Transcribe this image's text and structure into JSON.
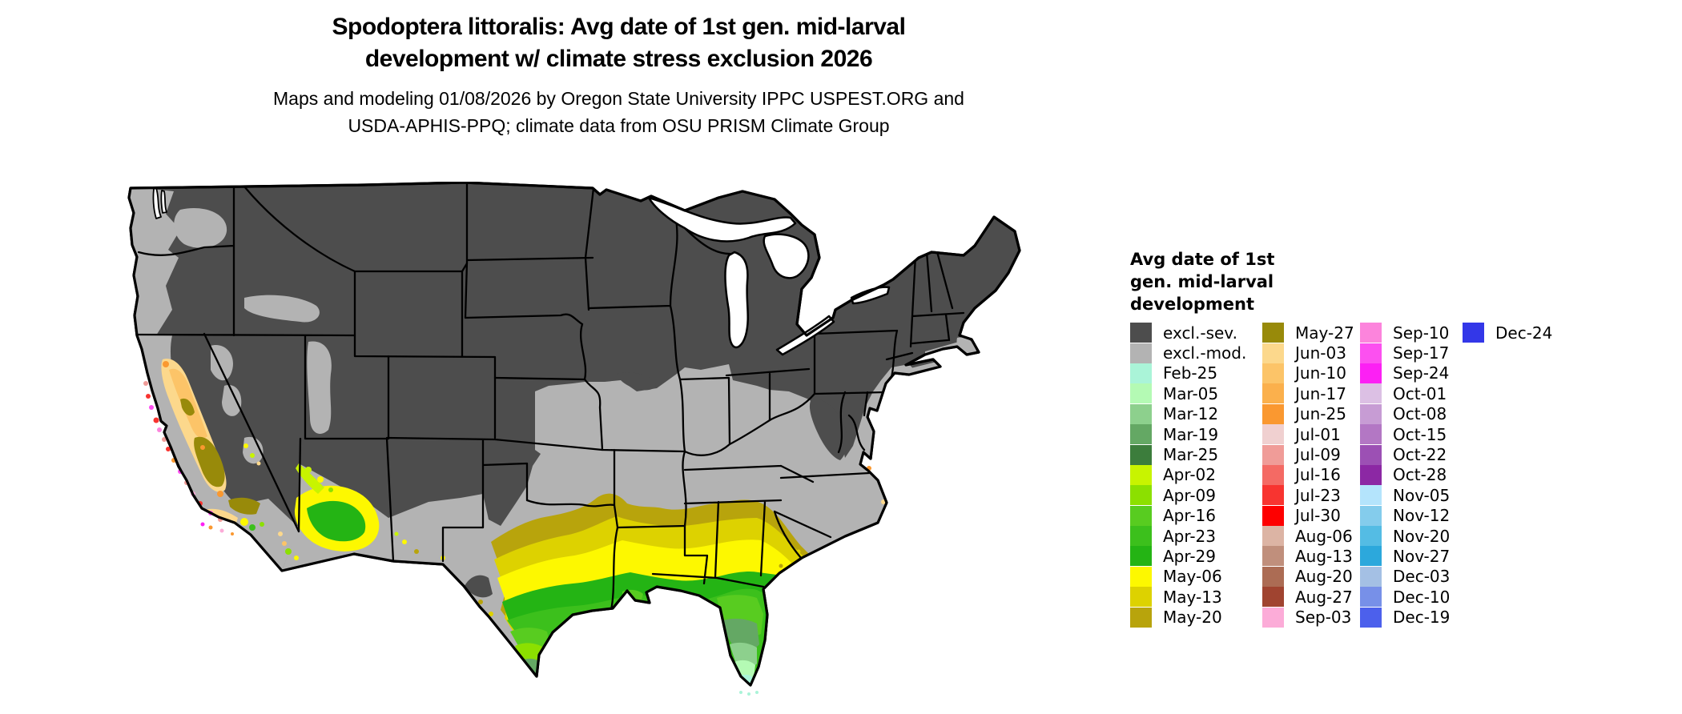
{
  "header": {
    "title_line1": "Spodoptera littoralis: Avg date of 1st gen. mid-larval",
    "title_line2": "development w/ climate stress exclusion 2026",
    "subtitle_line1": "Maps and modeling 01/08/2026 by Oregon State University IPPC USPEST.ORG and",
    "subtitle_line2": "USDA-APHIS-PPQ; climate data from OSU PRISM Climate Group"
  },
  "legend": {
    "title_line1": "Avg date of 1st",
    "title_line2": "gen. mid-larval",
    "title_line3": "development",
    "columns": [
      [
        {
          "label": "excl.-sev.",
          "color": "#4d4d4d"
        },
        {
          "label": "excl.-mod.",
          "color": "#b3b3b3"
        },
        {
          "label": "Feb-25",
          "color": "#aaf4d8"
        },
        {
          "label": "Mar-05",
          "color": "#b4fab4"
        },
        {
          "label": "Mar-12",
          "color": "#8dd08d"
        },
        {
          "label": "Mar-19",
          "color": "#64a864"
        },
        {
          "label": "Mar-25",
          "color": "#3c7d3c"
        },
        {
          "label": "Apr-02",
          "color": "#c8f400"
        },
        {
          "label": "Apr-09",
          "color": "#8ce000"
        },
        {
          "label": "Apr-16",
          "color": "#58cc20"
        },
        {
          "label": "Apr-23",
          "color": "#3cc01c"
        },
        {
          "label": "Apr-29",
          "color": "#24b414"
        },
        {
          "label": "May-06",
          "color": "#fdf800"
        },
        {
          "label": "May-13",
          "color": "#ddd200"
        },
        {
          "label": "May-20",
          "color": "#b8a40c"
        }
      ],
      [
        {
          "label": "May-27",
          "color": "#988a0a"
        },
        {
          "label": "Jun-03",
          "color": "#fcd88c"
        },
        {
          "label": "Jun-10",
          "color": "#fcc468"
        },
        {
          "label": "Jun-17",
          "color": "#fbb04c"
        },
        {
          "label": "Jun-25",
          "color": "#fa9830"
        },
        {
          "label": "Jul-01",
          "color": "#f0d0d0"
        },
        {
          "label": "Jul-09",
          "color": "#f09c98"
        },
        {
          "label": "Jul-16",
          "color": "#f46a64"
        },
        {
          "label": "Jul-23",
          "color": "#f83430"
        },
        {
          "label": "Jul-30",
          "color": "#fe0000"
        },
        {
          "label": "Aug-06",
          "color": "#dcb4a4"
        },
        {
          "label": "Aug-13",
          "color": "#c08f7c"
        },
        {
          "label": "Aug-20",
          "color": "#ac6c54"
        },
        {
          "label": "Aug-27",
          "color": "#a04430"
        },
        {
          "label": "Sep-03",
          "color": "#fcacd8"
        }
      ],
      [
        {
          "label": "Sep-10",
          "color": "#fc84dc"
        },
        {
          "label": "Sep-17",
          "color": "#fc50f0"
        },
        {
          "label": "Sep-24",
          "color": "#fc20f4"
        },
        {
          "label": "Oct-01",
          "color": "#dcc0e4"
        },
        {
          "label": "Oct-08",
          "color": "#c79cd4"
        },
        {
          "label": "Oct-15",
          "color": "#b377c4"
        },
        {
          "label": "Oct-22",
          "color": "#9c50b4"
        },
        {
          "label": "Oct-28",
          "color": "#8c28a4"
        },
        {
          "label": "Nov-05",
          "color": "#b4e4fc"
        },
        {
          "label": "Nov-12",
          "color": "#84ccec"
        },
        {
          "label": "Nov-20",
          "color": "#54bce4"
        },
        {
          "label": "Nov-27",
          "color": "#2ca8dc"
        },
        {
          "label": "Dec-03",
          "color": "#a4c0e4"
        },
        {
          "label": "Dec-10",
          "color": "#7790e8"
        },
        {
          "label": "Dec-19",
          "color": "#4c60ec"
        }
      ],
      [
        {
          "label": "Dec-24",
          "color": "#3337e8"
        }
      ]
    ]
  },
  "map": {
    "palette": {
      "excl_sev": "#4d4d4d",
      "excl_mod": "#b3b3b3",
      "feb25": "#aaf4d8",
      "mar05": "#b4fab4",
      "mar12": "#8dd08d",
      "mar19": "#64a864",
      "mar25": "#3c7d3c",
      "apr02": "#c8f400",
      "apr09": "#8ce000",
      "apr16": "#58cc20",
      "apr23": "#3cc01c",
      "apr29": "#24b414",
      "may06": "#fdf800",
      "may13": "#ddd200",
      "may20": "#b8a40c",
      "may27": "#988a0a",
      "jun03": "#fcd88c",
      "jun10": "#fcc468",
      "jun17": "#fbb04c",
      "jun25": "#fa9830",
      "jul09": "#f09c98",
      "jul16": "#f46a64",
      "jul23": "#f83430",
      "sep03": "#fcacd8",
      "sep10": "#fc84dc",
      "sep17": "#fc50f0",
      "sep24": "#fc20f4",
      "water": "#ffffff",
      "border": "#000000"
    }
  }
}
